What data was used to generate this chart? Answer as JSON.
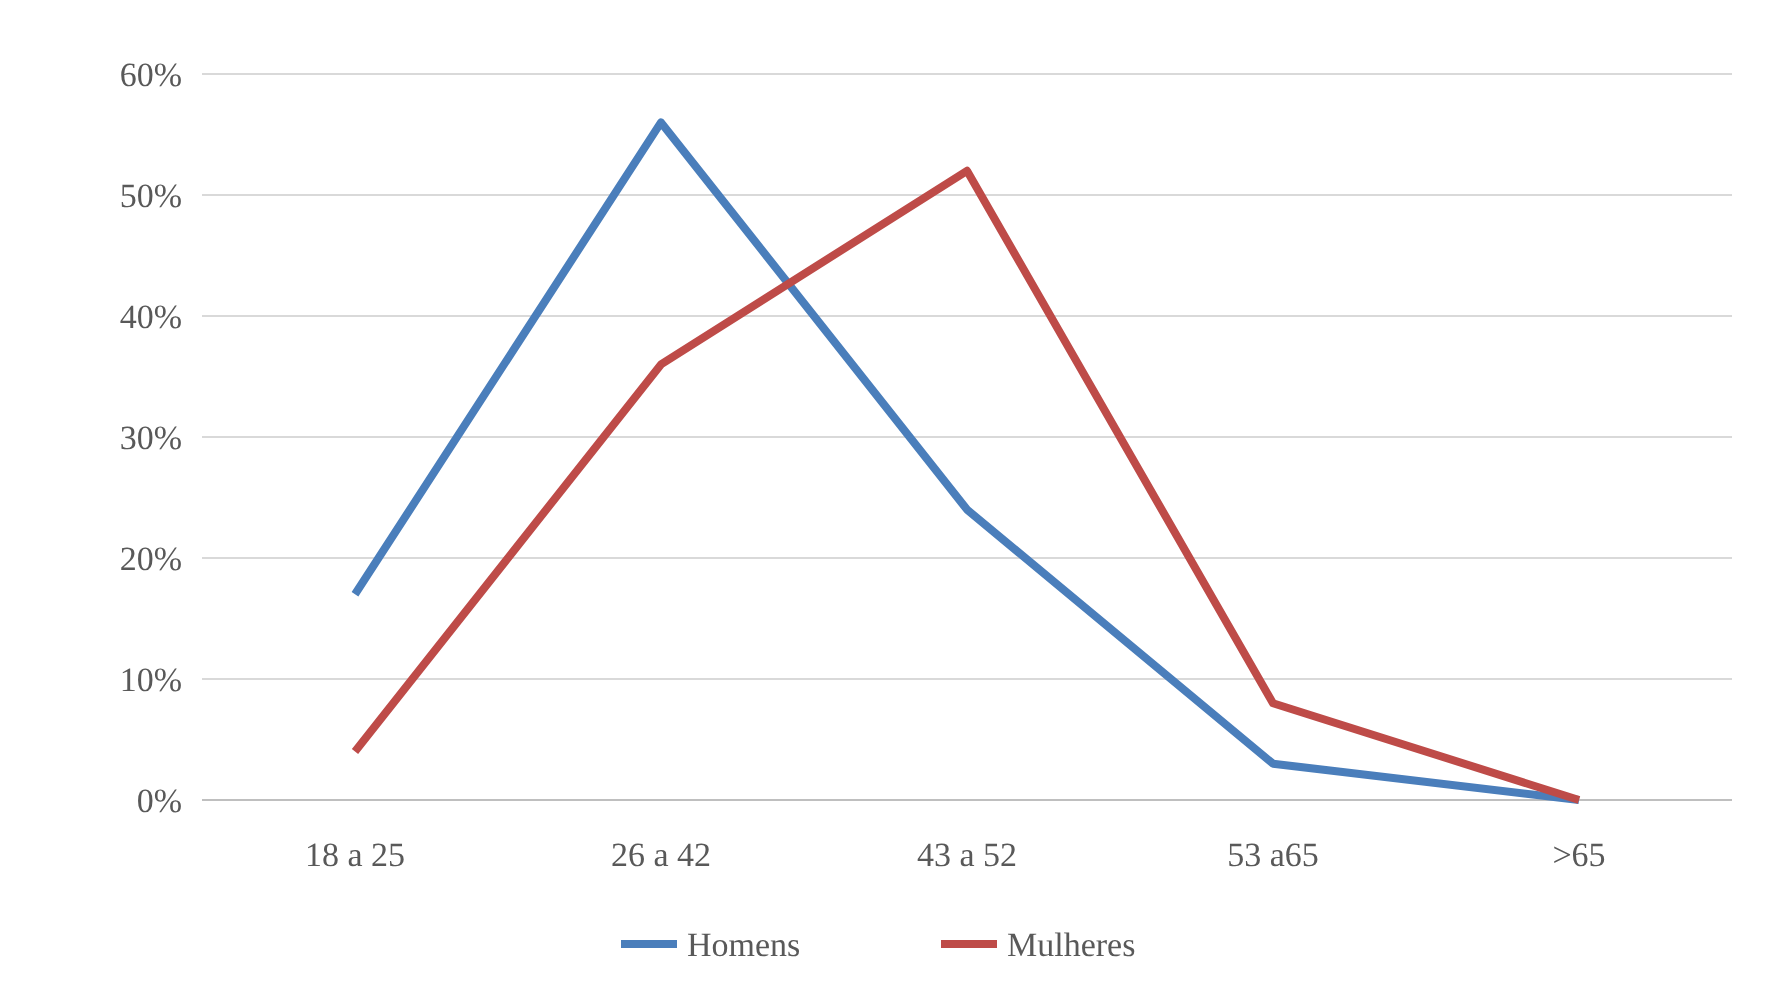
{
  "chart_data": {
    "type": "line",
    "categories": [
      "18 a 25",
      "26 a 42",
      "43 a 52",
      "53 a65",
      ">65"
    ],
    "series": [
      {
        "name": "Homens",
        "color": "#4a7ebb",
        "values": [
          17,
          56,
          24,
          3,
          0
        ]
      },
      {
        "name": "Mulheres",
        "color": "#be4b48",
        "values": [
          4,
          36,
          52,
          8,
          0
        ]
      }
    ],
    "ylim": [
      0,
      60
    ],
    "yticks": [
      {
        "value": 0,
        "label": "0%"
      },
      {
        "value": 10,
        "label": "10%"
      },
      {
        "value": 20,
        "label": "20%"
      },
      {
        "value": 30,
        "label": "30%"
      },
      {
        "value": 40,
        "label": "40%"
      },
      {
        "value": 50,
        "label": "50%"
      },
      {
        "value": 60,
        "label": "60%"
      }
    ],
    "grid": "y",
    "legend": "bottom",
    "marker": "none",
    "line_style": "solid"
  }
}
